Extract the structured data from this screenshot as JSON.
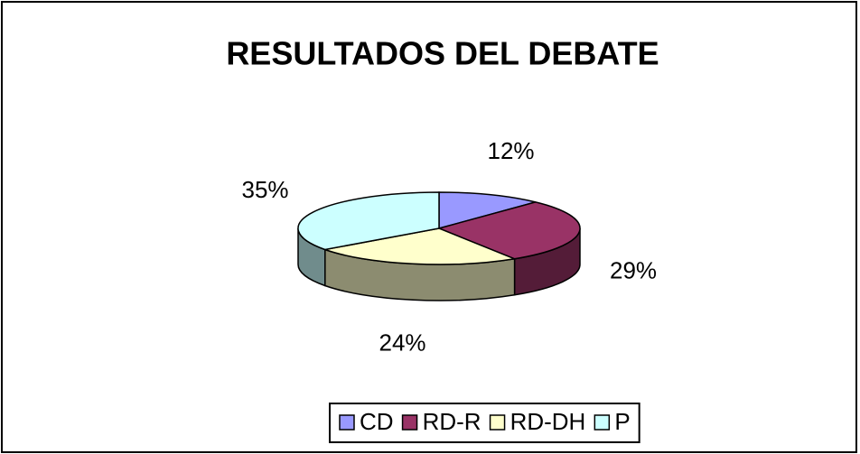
{
  "chart_data": {
    "type": "pie",
    "title": "RESULTADOS DEL DEBATE",
    "categories": [
      "CD",
      "RD-R",
      "RD-DH",
      "P"
    ],
    "values": [
      12,
      29,
      24,
      35
    ],
    "value_labels": [
      "12%",
      "29%",
      "24%",
      "35%"
    ],
    "colors": [
      "#9999ff",
      "#993366",
      "#ffffcc",
      "#ccffff"
    ],
    "legend": "bottom"
  }
}
